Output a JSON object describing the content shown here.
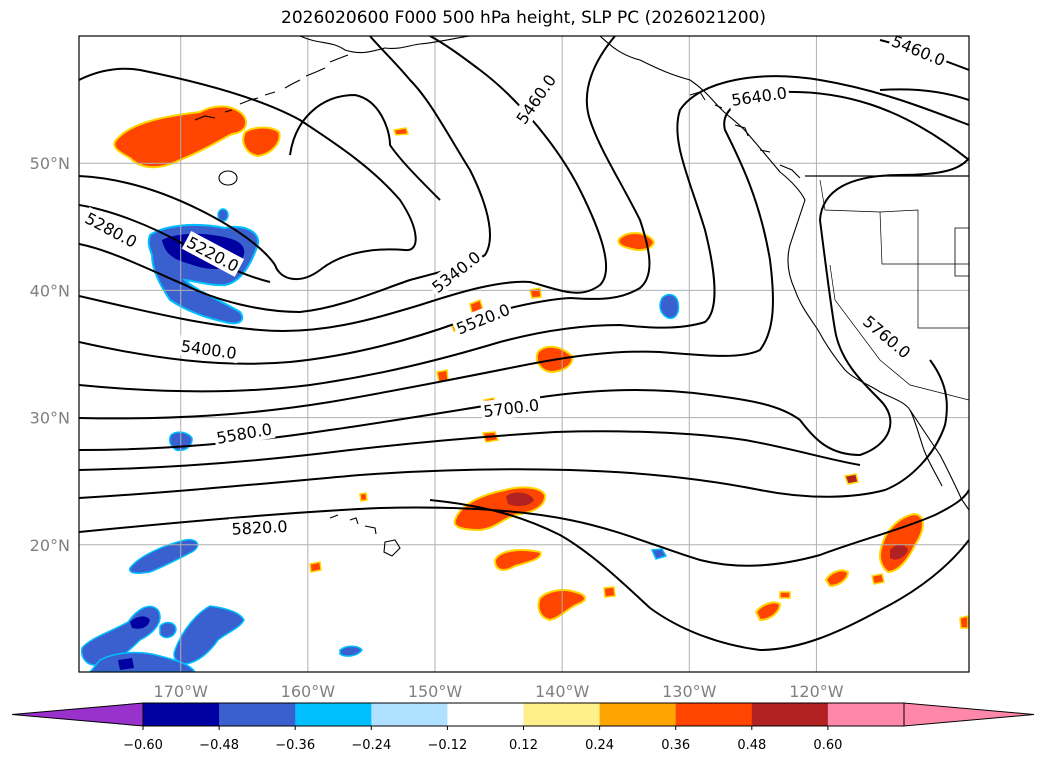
{
  "title": "2026020600 F000 500 hPa height, SLP PC (2026021200)",
  "map": {
    "extent": {
      "lon_min": -178,
      "lon_max": -108,
      "lat_min": 10,
      "lat_max": 60
    },
    "lon_ticks": [
      {
        "lon": -170,
        "label": "170°W"
      },
      {
        "lon": -160,
        "label": "160°W"
      },
      {
        "lon": -150,
        "label": "150°W"
      },
      {
        "lon": -140,
        "label": "140°W"
      },
      {
        "lon": -130,
        "label": "130°W"
      },
      {
        "lon": -120,
        "label": "120°W"
      }
    ],
    "lat_ticks": [
      {
        "lat": 50,
        "label": "50°N"
      },
      {
        "lat": 40,
        "label": "40°N"
      },
      {
        "lat": 30,
        "label": "30°N"
      },
      {
        "lat": 20,
        "label": "20°N"
      }
    ],
    "gridlines": true,
    "grid_color": "#b0b0b0",
    "tick_label_color": "#808080"
  },
  "contour_labels": [
    {
      "text": "5280.0",
      "lon": -175.5,
      "lat": 44.7,
      "rot": 28
    },
    {
      "text": "5220.0",
      "lon": -167.5,
      "lat": 42.8,
      "rot": 28
    },
    {
      "text": "5400.0",
      "lon": -167.8,
      "lat": 35.3,
      "rot": 8
    },
    {
      "text": "5340.0",
      "lon": -148.3,
      "lat": 41.4,
      "rot": -38
    },
    {
      "text": "5520.0",
      "lon": -146.2,
      "lat": 37.7,
      "rot": -22
    },
    {
      "text": "5460.0",
      "lon": -142.0,
      "lat": 55.0,
      "rot": -55
    },
    {
      "text": "5640.0",
      "lon": -124.5,
      "lat": 55.2,
      "rot": -8
    },
    {
      "text": "5460.0",
      "lon": -112.0,
      "lat": 58.8,
      "rot": 22
    },
    {
      "text": "5700.0",
      "lon": -144.0,
      "lat": 30.7,
      "rot": -7
    },
    {
      "text": "5580.0",
      "lon": -165.0,
      "lat": 28.7,
      "rot": -10
    },
    {
      "text": "5760.0",
      "lon": -114.5,
      "lat": 36.3,
      "rot": 40
    },
    {
      "text": "5820.0",
      "lon": -163.8,
      "lat": 21.3,
      "rot": -3
    }
  ],
  "colorbar": {
    "extend": "both",
    "levels": [
      -0.72,
      -0.6,
      -0.48,
      -0.36,
      -0.24,
      -0.12,
      0.12,
      0.24,
      0.36,
      0.48,
      0.6,
      0.72
    ],
    "colors": [
      "#0000a0",
      "#3a60d0",
      "#00bfff",
      "#b0e0ff",
      "#ffffff",
      "#fff08c",
      "#ffa500",
      "#ff4500",
      "#b22222",
      "#ff88aa"
    ],
    "under_color": "#9932cc",
    "over_color": "#ff88aa",
    "tick_labels": [
      "−0.60",
      "−0.48",
      "−0.36",
      "−0.24",
      "−0.12",
      "0.12",
      "0.24",
      "0.36",
      "0.48",
      "0.60"
    ]
  }
}
